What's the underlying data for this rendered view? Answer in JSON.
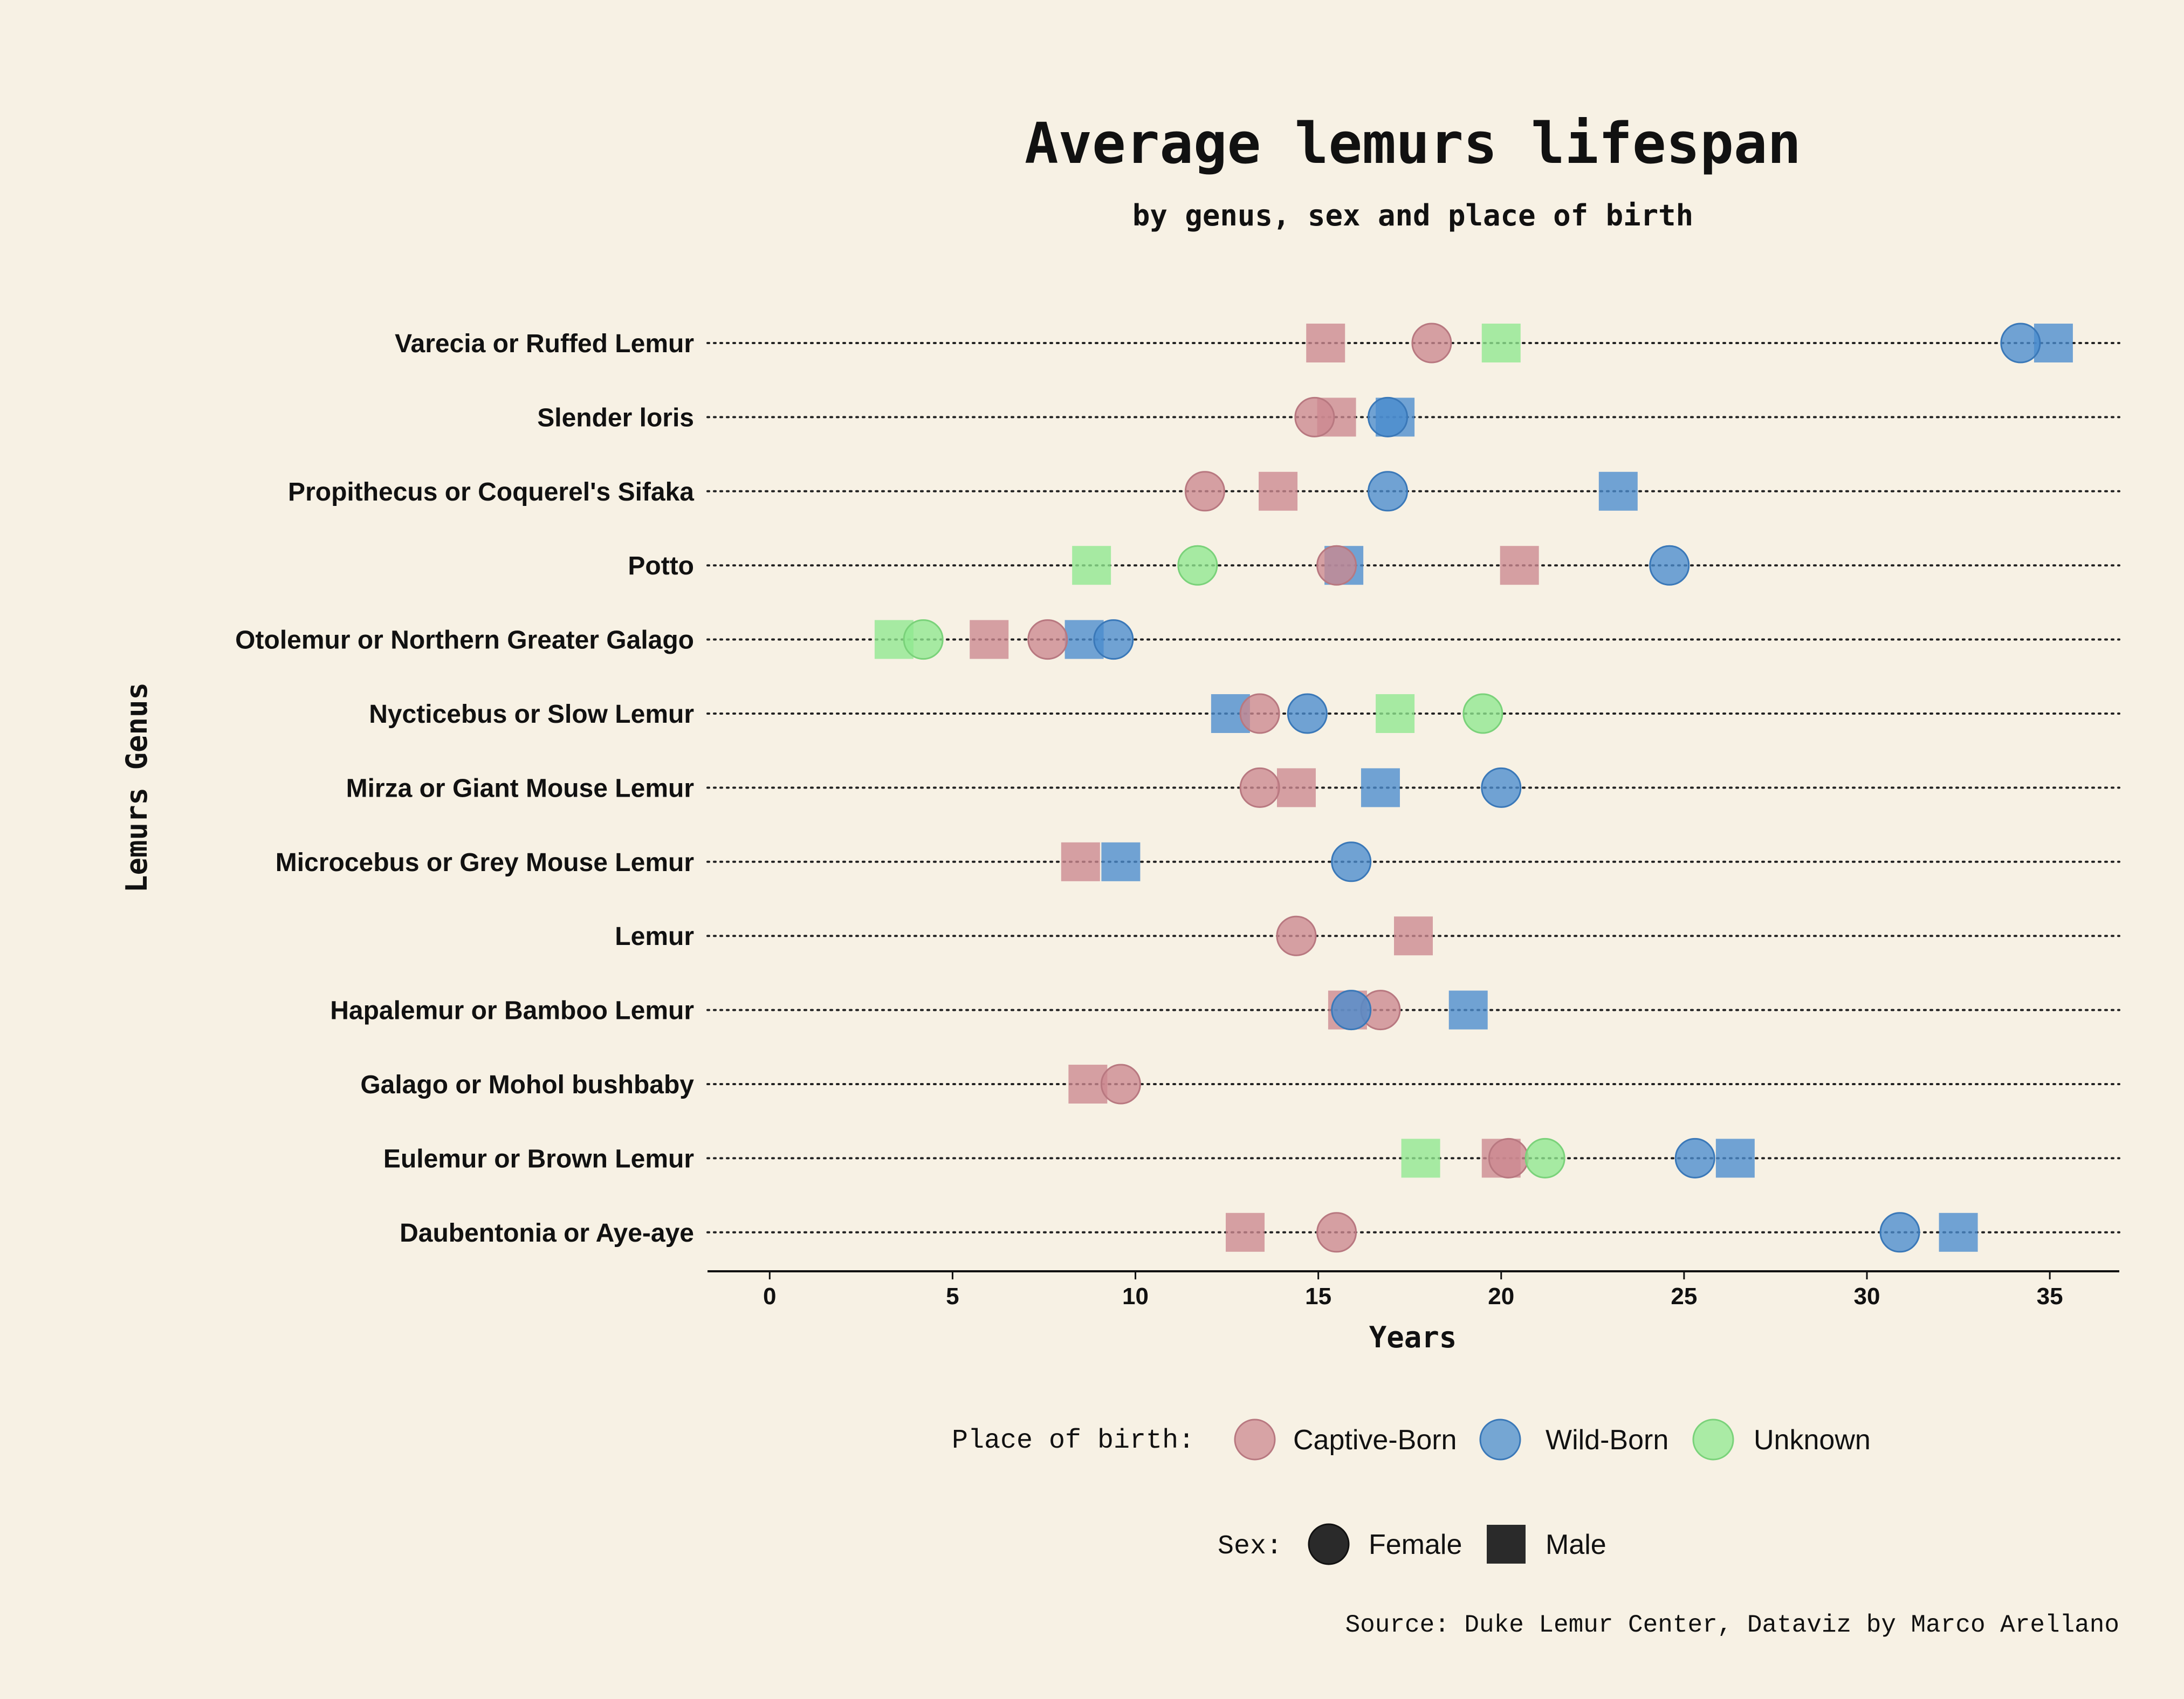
{
  "chart_data": {
    "type": "scatter",
    "title": "Average lemurs lifespan",
    "subtitle": "by genus, sex and place of birth",
    "xlabel": "Years",
    "ylabel": "Lemurs Genus",
    "xlim": [
      -1.7,
      36.9
    ],
    "xticks": [
      0,
      5,
      10,
      15,
      20,
      25,
      30,
      35
    ],
    "xtick_labels": [
      "0",
      "5",
      "10",
      "15",
      "20",
      "25",
      "30",
      "35"
    ],
    "categories": [
      "Varecia or Ruffed Lemur",
      "Slender loris",
      "Propithecus or Coquerel's Sifaka",
      "Potto",
      "Otolemur or Northern Greater Galago",
      "Nycticebus or Slow Lemur",
      "Mirza or Giant Mouse Lemur",
      "Microcebus or Grey Mouse Lemur",
      "Lemur",
      "Hapalemur or Bamboo Lemur",
      "Galago or Mohol bushbaby",
      "Eulemur or Brown Lemur",
      "Daubentonia or Aye-aye"
    ],
    "series": [
      {
        "name": "Captive-Born",
        "sex": "Female",
        "color": "#cc8890",
        "values": [
          18.1,
          14.9,
          11.9,
          15.5,
          7.6,
          13.4,
          13.4,
          null,
          14.4,
          16.7,
          9.6,
          20.2,
          15.5
        ]
      },
      {
        "name": "Captive-Born",
        "sex": "Male",
        "color": "#cc8890",
        "values": [
          15.2,
          15.5,
          13.9,
          20.5,
          6.0,
          null,
          14.4,
          8.5,
          17.6,
          15.8,
          8.7,
          20.0,
          13.0
        ]
      },
      {
        "name": "Wild-Born",
        "sex": "Female",
        "color": "#4a8cce",
        "values": [
          34.2,
          16.9,
          16.9,
          24.6,
          9.4,
          14.7,
          20.0,
          15.9,
          null,
          15.9,
          null,
          25.3,
          30.9
        ]
      },
      {
        "name": "Wild-Born",
        "sex": "Male",
        "color": "#4a8cce",
        "values": [
          35.1,
          17.1,
          23.2,
          15.7,
          8.6,
          12.6,
          16.7,
          9.6,
          null,
          19.1,
          null,
          26.4,
          32.5
        ]
      },
      {
        "name": "Unknown",
        "sex": "Female",
        "color": "#90e890",
        "values": [
          null,
          null,
          null,
          11.7,
          4.2,
          19.5,
          null,
          null,
          null,
          null,
          null,
          21.2,
          null
        ]
      },
      {
        "name": "Unknown",
        "sex": "Male",
        "color": "#90e890",
        "values": [
          20.0,
          null,
          null,
          8.8,
          3.4,
          17.1,
          null,
          null,
          null,
          null,
          null,
          17.8,
          null
        ]
      }
    ],
    "legend": {
      "place_title": "Place of birth:",
      "place_items": [
        {
          "label": "Captive-Born",
          "color": "#cc8890"
        },
        {
          "label": "Wild-Born",
          "color": "#4a8cce"
        },
        {
          "label": "Unknown",
          "color": "#90e890"
        }
      ],
      "sex_title": "Sex:",
      "sex_items": [
        {
          "label": "Female",
          "marker": "circle",
          "color": "#2a2a2a"
        },
        {
          "label": "Male",
          "marker": "square",
          "color": "#2a2a2a"
        }
      ],
      "position": "bottom-center"
    },
    "source": "Source: Duke Lemur Center, Dataviz by Marco Arellano"
  }
}
